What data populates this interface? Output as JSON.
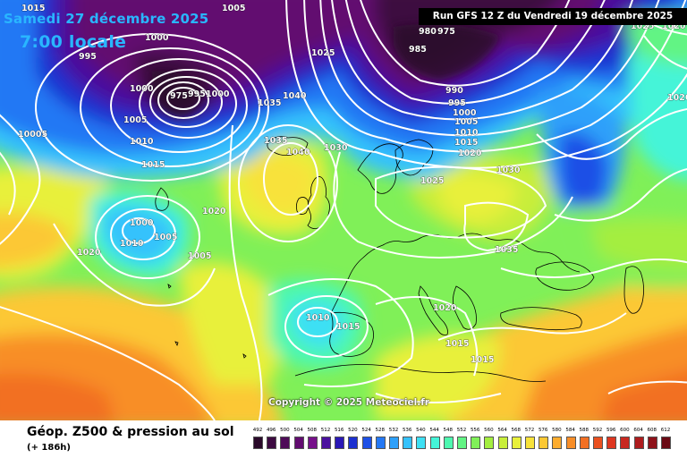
{
  "header": {
    "date_line": "Samedi 27 décembre 2025",
    "time_line": "7:00 locale",
    "run_info": "Run GFS 12 Z du Vendredi 19 décembre 2025"
  },
  "copyright": "Copyright © 2025 Meteociel.fr",
  "footer": {
    "title": "Géop. Z500 & pression au sol",
    "lead_time": "(+ 186h)"
  },
  "legend": {
    "ticks": [
      "492",
      "496",
      "500",
      "504",
      "508",
      "512",
      "516",
      "520",
      "524",
      "528",
      "532",
      "536",
      "540",
      "544",
      "548",
      "552",
      "556",
      "560",
      "564",
      "568",
      "572",
      "576",
      "580",
      "584",
      "588",
      "592",
      "596",
      "600",
      "604",
      "608",
      "612"
    ],
    "colors": [
      "#2a0a2a",
      "#3c0a40",
      "#4e0c58",
      "#620c70",
      "#76108a",
      "#4a109e",
      "#2a18b6",
      "#1c30d0",
      "#1e50e6",
      "#2478f4",
      "#2ea0fa",
      "#36c2fc",
      "#3ee0f4",
      "#44f4d8",
      "#4ef8b0",
      "#62f484",
      "#80f058",
      "#a4ee40",
      "#c8ee3a",
      "#e8f03a",
      "#f8e23a",
      "#fcc834",
      "#fcac2e",
      "#f88e28",
      "#f27024",
      "#ea5020",
      "#de3620",
      "#c82820",
      "#ae1c1e",
      "#8e121a",
      "#6a0a14"
    ]
  },
  "pressure_labels": [
    "1005",
    "1000",
    "995",
    "1000",
    "975",
    "995",
    "1000",
    "1005",
    "1010",
    "1015",
    "10005",
    "1025",
    "1035",
    "1040",
    "1035",
    "1040",
    "1030",
    "980",
    "975",
    "985",
    "990",
    "995",
    "1000",
    "1005",
    "1010",
    "1015",
    "1020",
    "1030",
    "1025",
    "1020",
    "1000",
    "1005",
    "1010",
    "1005",
    "1020",
    "1015",
    "1020",
    "1035",
    "1010",
    "1015",
    "1020",
    "1015",
    "1015",
    "1025",
    "1020"
  ]
}
